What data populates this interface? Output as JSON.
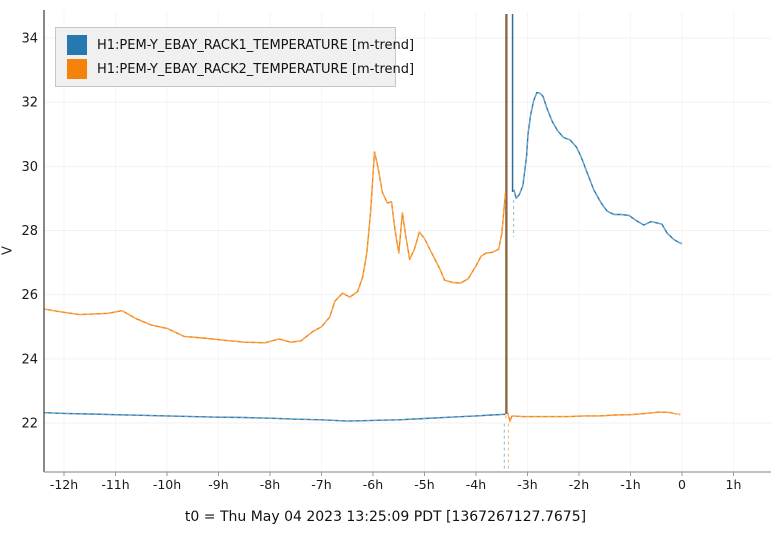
{
  "chart_data": {
    "type": "line",
    "title": "",
    "xlabel": "",
    "ylabel": "V",
    "x_unit": "hours relative to t0",
    "caption": "t0 = Thu May 04 2023 13:25:09 PDT [1367267127.7675]",
    "xlim": [
      -12.4,
      1.7
    ],
    "ylim": [
      20.45,
      34.75
    ],
    "grid": true,
    "legend_position": "top-left",
    "x_ticks": {
      "values": [
        -12,
        -11,
        -10,
        -9,
        -8,
        -7,
        -6,
        -5,
        -4,
        -3,
        -2,
        -1,
        0,
        1
      ],
      "labels": [
        "-12h",
        "-11h",
        "-10h",
        "-9h",
        "-8h",
        "-7h",
        "-6h",
        "-5h",
        "-4h",
        "-3h",
        "-2h",
        "-1h",
        "0",
        "1h"
      ]
    },
    "y_ticks": {
      "values": [
        22,
        24,
        26,
        28,
        30,
        32,
        34
      ],
      "labels": [
        "22",
        "24",
        "26",
        "28",
        "30",
        "32",
        "34"
      ]
    },
    "series": [
      {
        "name": "H1:PEM-Y_EBAY_RACK1_TEMPERATURE [m-trend]",
        "color": "#2878b0",
        "light_color": "#8ab4cd",
        "segments": [
          [
            [
              -12.38,
              22.32
            ],
            [
              -12,
              22.3
            ],
            [
              -11.5,
              22.28
            ],
            [
              -11,
              22.26
            ],
            [
              -10.5,
              22.24
            ],
            [
              -10,
              22.22
            ],
            [
              -9.5,
              22.2
            ],
            [
              -9,
              22.18
            ],
            [
              -8.5,
              22.17
            ],
            [
              -8,
              22.15
            ],
            [
              -7.5,
              22.12
            ],
            [
              -7,
              22.1
            ],
            [
              -6.5,
              22.06
            ],
            [
              -6,
              22.08
            ],
            [
              -5.5,
              22.1
            ],
            [
              -5,
              22.14
            ],
            [
              -4.5,
              22.18
            ],
            [
              -4,
              22.22
            ],
            [
              -3.7,
              22.25
            ],
            [
              -3.44,
              22.27
            ]
          ],
          [
            [
              -3.26,
              29.25
            ],
            [
              -3.22,
              29.0
            ],
            [
              -3.16,
              29.12
            ],
            [
              -3.09,
              29.4
            ],
            [
              -3.02,
              30.3
            ],
            [
              -2.99,
              31.0
            ],
            [
              -2.94,
              31.6
            ],
            [
              -2.88,
              32.05
            ],
            [
              -2.82,
              32.3
            ],
            [
              -2.76,
              32.28
            ],
            [
              -2.7,
              32.18
            ],
            [
              -2.62,
              31.8
            ],
            [
              -2.52,
              31.4
            ],
            [
              -2.42,
              31.12
            ],
            [
              -2.3,
              30.9
            ],
            [
              -2.17,
              30.82
            ],
            [
              -2.05,
              30.6
            ],
            [
              -1.96,
              30.3
            ],
            [
              -1.84,
              29.8
            ],
            [
              -1.71,
              29.26
            ],
            [
              -1.57,
              28.86
            ],
            [
              -1.45,
              28.6
            ],
            [
              -1.32,
              28.5
            ],
            [
              -1.18,
              28.5
            ],
            [
              -1.03,
              28.47
            ],
            [
              -0.88,
              28.3
            ],
            [
              -0.74,
              28.17
            ],
            [
              -0.6,
              28.28
            ],
            [
              -0.5,
              28.24
            ],
            [
              -0.39,
              28.2
            ],
            [
              -0.29,
              27.92
            ],
            [
              -0.16,
              27.72
            ],
            [
              -0.05,
              27.62
            ]
          ]
        ]
      },
      {
        "name": "H1:PEM-Y_EBAY_RACK2_TEMPERATURE [m-trend]",
        "color": "#f5820b",
        "light_color": "#f9b26a",
        "segments": [
          [
            [
              -12.38,
              25.55
            ],
            [
              -12.2,
              25.5
            ],
            [
              -12,
              25.45
            ],
            [
              -11.7,
              25.38
            ],
            [
              -11.4,
              25.4
            ],
            [
              -11.15,
              25.42
            ],
            [
              -10.87,
              25.5
            ],
            [
              -10.6,
              25.25
            ],
            [
              -10.3,
              25.05
            ],
            [
              -10,
              24.95
            ],
            [
              -9.67,
              24.7
            ],
            [
              -9.3,
              24.65
            ],
            [
              -8.9,
              24.58
            ],
            [
              -8.5,
              24.52
            ],
            [
              -8.1,
              24.5
            ],
            [
              -7.83,
              24.62
            ],
            [
              -7.6,
              24.52
            ],
            [
              -7.4,
              24.56
            ],
            [
              -7.17,
              24.85
            ],
            [
              -7,
              25.0
            ],
            [
              -6.84,
              25.3
            ],
            [
              -6.74,
              25.8
            ],
            [
              -6.59,
              26.05
            ],
            [
              -6.45,
              25.92
            ],
            [
              -6.3,
              26.1
            ],
            [
              -6.2,
              26.55
            ],
            [
              -6.12,
              27.3
            ],
            [
              -6.05,
              28.5
            ],
            [
              -5.97,
              30.45
            ],
            [
              -5.9,
              29.95
            ],
            [
              -5.82,
              29.2
            ],
            [
              -5.72,
              28.85
            ],
            [
              -5.64,
              28.9
            ],
            [
              -5.57,
              28.0
            ],
            [
              -5.5,
              27.3
            ],
            [
              -5.43,
              28.55
            ],
            [
              -5.37,
              27.9
            ],
            [
              -5.29,
              27.1
            ],
            [
              -5.2,
              27.4
            ],
            [
              -5.1,
              27.95
            ],
            [
              -5,
              27.75
            ],
            [
              -4.86,
              27.3
            ],
            [
              -4.7,
              26.8
            ],
            [
              -4.61,
              26.45
            ],
            [
              -4.45,
              26.38
            ],
            [
              -4.3,
              26.36
            ],
            [
              -4.15,
              26.5
            ],
            [
              -4,
              26.9
            ],
            [
              -3.9,
              27.2
            ],
            [
              -3.8,
              27.3
            ],
            [
              -3.68,
              27.32
            ],
            [
              -3.56,
              27.42
            ],
            [
              -3.5,
              27.9
            ],
            [
              -3.46,
              28.6
            ],
            [
              -3.43,
              29.15
            ]
          ],
          [
            [
              -3.38,
              22.3
            ],
            [
              -3.34,
              22.05
            ],
            [
              -3.3,
              22.22
            ],
            [
              -3.1,
              22.2
            ],
            [
              -2.8,
              22.2
            ],
            [
              -2.5,
              22.2
            ],
            [
              -2.2,
              22.2
            ],
            [
              -1.9,
              22.22
            ],
            [
              -1.6,
              22.22
            ],
            [
              -1.3,
              22.25
            ],
            [
              -1,
              22.26
            ],
            [
              -0.7,
              22.3
            ],
            [
              -0.45,
              22.34
            ],
            [
              -0.25,
              22.33
            ],
            [
              -0.1,
              22.28
            ]
          ]
        ]
      }
    ],
    "annotations": {
      "glitch_time_h": -3.4,
      "spike_lines": [
        {
          "name": "glitch-spike-combined",
          "h": -3.41,
          "v1": 34.75,
          "v2": 22.28,
          "color": "#8a6a45",
          "width": 2.4
        },
        {
          "name": "glitch-spike-rack1",
          "h": -3.29,
          "v1": 34.75,
          "v2": 29.2,
          "color": "#2e6e96",
          "width": 1.5
        }
      ],
      "dashed_lines": [
        {
          "name": "rack2-glitch-drop-dashed",
          "h": -3.42,
          "v1": 28.6,
          "v2": 22.1,
          "color": "#f0a860",
          "width": 1.1
        },
        {
          "name": "rack1-glitch-drop-dashed",
          "h": -3.27,
          "v1": 28.95,
          "v2": 27.8,
          "color": "#9dbdd2",
          "width": 1.1
        },
        {
          "name": "rack1-below-trace-dashed",
          "h": -3.45,
          "v1": 21.98,
          "v2": 20.48,
          "color": "#9dbdd2",
          "width": 1.1
        },
        {
          "name": "rack2-below-trace-dashed",
          "h": -3.37,
          "v1": 21.98,
          "v2": 20.48,
          "color": "#f0b97e",
          "width": 1.1
        }
      ]
    },
    "style": {
      "grid_color_h": "#f2f2f2",
      "grid_color_v": "#f6f6f6",
      "y_axis_color": "#3a3a3a",
      "x_axis_color": "#9a9a9a",
      "tick_label_color": "#1a1a1a"
    }
  },
  "legend": {
    "items": [
      {
        "label": "H1:PEM-Y_EBAY_RACK1_TEMPERATURE [m-trend]",
        "color": "#2878b0"
      },
      {
        "label": "H1:PEM-Y_EBAY_RACK2_TEMPERATURE [m-trend]",
        "color": "#f5820b"
      }
    ]
  }
}
